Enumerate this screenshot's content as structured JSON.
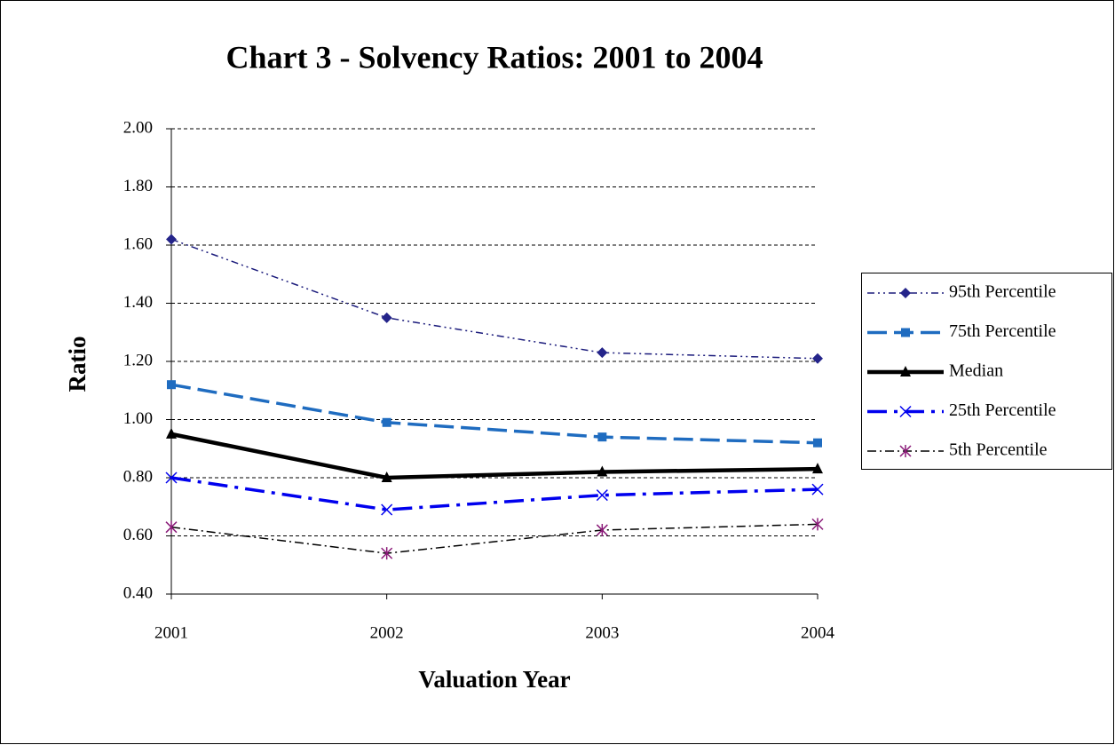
{
  "chart_data": {
    "type": "line",
    "title": "Chart 3 - Solvency Ratios: 2001 to 2004",
    "x_label": "Valuation Year",
    "y_label": "Ratio",
    "categories": [
      "2001",
      "2002",
      "2003",
      "2004"
    ],
    "ylim": [
      0.4,
      2.0
    ],
    "yticks": [
      {
        "value": 0.4,
        "label": "0.40"
      },
      {
        "value": 0.6,
        "label": "0.60"
      },
      {
        "value": 0.8,
        "label": "0.80"
      },
      {
        "value": 1.0,
        "label": "1.00"
      },
      {
        "value": 1.2,
        "label": "1.20"
      },
      {
        "value": 1.4,
        "label": "1.40"
      },
      {
        "value": 1.6,
        "label": "1.60"
      },
      {
        "value": 1.8,
        "label": "1.80"
      },
      {
        "value": 2.0,
        "label": "2.00"
      }
    ],
    "grid": true,
    "legend": "right",
    "series": [
      {
        "name": "95th Percentile",
        "color": "#1c1c7c",
        "marker_color": "#24248a",
        "marker": "diamond",
        "dash": "8 4 2 4 2 4",
        "width": 1.5,
        "values": [
          1.62,
          1.35,
          1.23,
          1.21
        ]
      },
      {
        "name": "75th Percentile",
        "color": "#1f6cc0",
        "marker_color": "#1f6cc0",
        "marker": "square",
        "dash": "22 8",
        "width": 3.5,
        "values": [
          1.12,
          0.99,
          0.94,
          0.92
        ]
      },
      {
        "name": "Median",
        "color": "#000000",
        "marker_color": "#000000",
        "marker": "triangle",
        "dash": "",
        "width": 4.5,
        "values": [
          0.95,
          0.8,
          0.82,
          0.83
        ]
      },
      {
        "name": "25th Percentile",
        "color": "#0000ee",
        "marker_color": "#0000ee",
        "marker": "x",
        "dash": "22 8 4 8",
        "width": 3.5,
        "values": [
          0.8,
          0.69,
          0.74,
          0.76
        ]
      },
      {
        "name": "5th Percentile",
        "color": "#000000",
        "marker_color": "#8a1a78",
        "marker": "star",
        "dash": "10 4 2 4",
        "width": 1.5,
        "values": [
          0.63,
          0.54,
          0.62,
          0.64
        ]
      }
    ]
  }
}
